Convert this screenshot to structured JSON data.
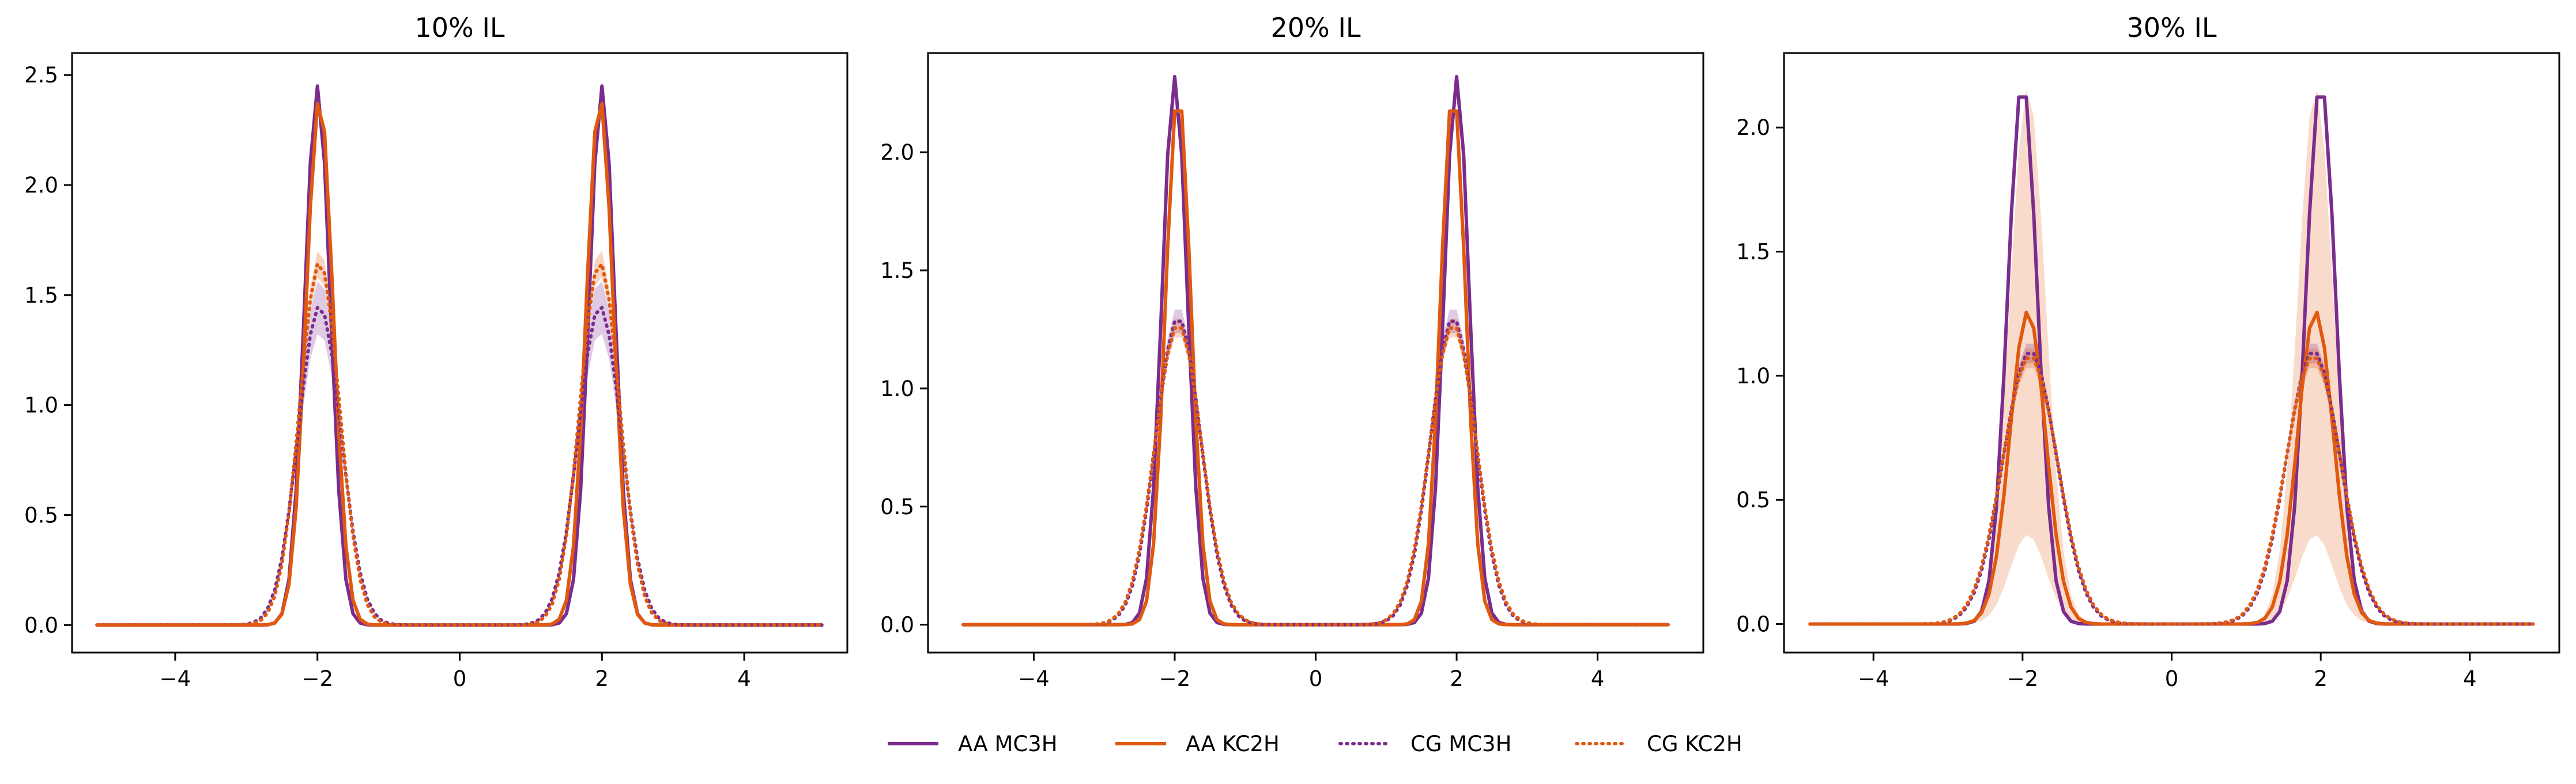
{
  "legend": {
    "placement": "bottom-center",
    "entries": [
      {
        "label": "AA MC3H",
        "color": "#7B2D8E",
        "style": "solid"
      },
      {
        "label": "AA KC2H",
        "color": "#E0590F",
        "style": "solid"
      },
      {
        "label": "CG MC3H",
        "color": "#7B2D8E",
        "style": "dotted"
      },
      {
        "label": "CG KC2H",
        "color": "#E0590F",
        "style": "dotted"
      }
    ]
  },
  "chart_data": [
    {
      "type": "line",
      "title": "10% IL",
      "xlabel": "",
      "ylabel": "",
      "xlim": [
        -5.45,
        5.45
      ],
      "ylim": [
        -0.125,
        2.6
      ],
      "xticks": [
        -4,
        -2,
        0,
        2,
        4
      ],
      "yticks": [
        0.0,
        0.5,
        1.0,
        1.5,
        2.0,
        2.5
      ],
      "ytick_labels": [
        "0.0",
        "0.5",
        "1.0",
        "1.5",
        "2.0",
        "2.5"
      ],
      "grid": false,
      "series": [
        {
          "legend": "AA MC3H",
          "style": "solid",
          "color": "#7B2D8E",
          "peaks": [
            {
              "center": -2.0,
              "height": 2.45,
              "sigma": 0.18
            },
            {
              "center": 2.0,
              "height": 2.45,
              "sigma": 0.18
            }
          ],
          "x_range": [
            -5.1,
            5.1
          ],
          "band": 0
        },
        {
          "legend": "AA KC2H",
          "style": "solid",
          "color": "#E0590F",
          "peaks": [
            {
              "center": -1.97,
              "height": 2.4,
              "sigma": 0.19
            },
            {
              "center": 1.97,
              "height": 2.4,
              "sigma": 0.19
            }
          ],
          "x_range": [
            -5.1,
            5.1
          ],
          "band": 0
        },
        {
          "legend": "CG MC3H",
          "style": "dotted",
          "color": "#7B2D8E",
          "peaks": [
            {
              "center": -1.97,
              "height": 1.45,
              "sigma": 0.3
            },
            {
              "center": 1.97,
              "height": 1.45,
              "sigma": 0.3
            }
          ],
          "x_range": [
            -5.1,
            5.1
          ],
          "band": 0.12,
          "band_color": "#7B2D8E"
        },
        {
          "legend": "CG KC2H",
          "style": "dotted",
          "color": "#E0590F",
          "peaks": [
            {
              "center": -1.97,
              "height": 1.65,
              "sigma": 0.28
            },
            {
              "center": 1.97,
              "height": 1.65,
              "sigma": 0.28
            }
          ],
          "x_range": [
            -5.1,
            5.1
          ],
          "band": 0.06,
          "band_color": "#E0590F"
        }
      ]
    },
    {
      "type": "line",
      "title": "20% IL",
      "xlabel": "",
      "ylabel": "",
      "xlim": [
        -5.5,
        5.5
      ],
      "ylim": [
        -0.118,
        2.42
      ],
      "xticks": [
        -4,
        -2,
        0,
        2,
        4
      ],
      "yticks": [
        0.0,
        0.5,
        1.0,
        1.5,
        2.0
      ],
      "ytick_labels": [
        "0.0",
        "0.5",
        "1.0",
        "1.5",
        "2.0"
      ],
      "grid": false,
      "series": [
        {
          "legend": "AA MC3H",
          "style": "solid",
          "color": "#7B2D8E",
          "peaks": [
            {
              "center": -2.0,
              "height": 2.32,
              "sigma": 0.18
            },
            {
              "center": 2.0,
              "height": 2.32,
              "sigma": 0.18
            }
          ],
          "x_range": [
            -5.0,
            5.0
          ],
          "band": 0
        },
        {
          "legend": "AA KC2H",
          "style": "solid",
          "color": "#E0590F",
          "peaks": [
            {
              "center": -1.95,
              "height": 2.26,
              "sigma": 0.18
            },
            {
              "center": 1.95,
              "height": 2.26,
              "sigma": 0.18
            }
          ],
          "x_range": [
            -5.0,
            5.0
          ],
          "band": 0
        },
        {
          "legend": "CG MC3H",
          "style": "dotted",
          "color": "#7B2D8E",
          "peaks": [
            {
              "center": -1.95,
              "height": 1.3,
              "sigma": 0.32
            },
            {
              "center": 1.95,
              "height": 1.3,
              "sigma": 0.32
            }
          ],
          "x_range": [
            -5.0,
            5.0
          ],
          "band": 0.05,
          "band_color": "#7B2D8E"
        },
        {
          "legend": "CG KC2H",
          "style": "dotted",
          "color": "#E0590F",
          "peaks": [
            {
              "center": -1.95,
              "height": 1.27,
              "sigma": 0.33
            },
            {
              "center": 1.95,
              "height": 1.27,
              "sigma": 0.33
            }
          ],
          "x_range": [
            -5.0,
            5.0
          ],
          "band": 0.04,
          "band_color": "#E0590F"
        }
      ]
    },
    {
      "type": "line",
      "title": "30% IL",
      "xlabel": "",
      "ylabel": "",
      "xlim": [
        -5.2,
        5.2
      ],
      "ylim": [
        -0.115,
        2.3
      ],
      "xticks": [
        -4,
        -2,
        0,
        2,
        4
      ],
      "yticks": [
        0.0,
        0.5,
        1.0,
        1.5,
        2.0
      ],
      "ytick_labels": [
        "0.0",
        "0.5",
        "1.0",
        "1.5",
        "2.0"
      ],
      "grid": false,
      "series": [
        {
          "legend": "AA MC3H",
          "style": "solid",
          "color": "#7B2D8E",
          "peaks": [
            {
              "center": -2.0,
              "height": 2.19,
              "sigma": 0.2
            },
            {
              "center": 2.0,
              "height": 2.19,
              "sigma": 0.2
            }
          ],
          "x_range": [
            -4.85,
            4.85
          ],
          "band": 0
        },
        {
          "legend": "AA KC2H",
          "style": "solid",
          "color": "#E0590F",
          "peaks": [
            {
              "center": -1.93,
              "height": 1.26,
              "sigma": 0.24
            },
            {
              "center": 1.93,
              "height": 1.26,
              "sigma": 0.24
            }
          ],
          "x_range": [
            -4.85,
            4.85
          ],
          "band": 0.9,
          "band_color": "#E0590F"
        },
        {
          "legend": "CG MC3H",
          "style": "dotted",
          "color": "#7B2D8E",
          "peaks": [
            {
              "center": -1.9,
              "height": 1.1,
              "sigma": 0.36
            },
            {
              "center": 1.9,
              "height": 1.1,
              "sigma": 0.36
            }
          ],
          "x_range": [
            -4.85,
            4.85
          ],
          "band": 0.04,
          "band_color": "#7B2D8E"
        },
        {
          "legend": "CG KC2H",
          "style": "dotted",
          "color": "#E0590F",
          "peaks": [
            {
              "center": -1.9,
              "height": 1.08,
              "sigma": 0.37
            },
            {
              "center": 1.9,
              "height": 1.08,
              "sigma": 0.37
            }
          ],
          "x_range": [
            -4.85,
            4.85
          ],
          "band": 0.04,
          "band_color": "#E0590F"
        }
      ]
    }
  ]
}
